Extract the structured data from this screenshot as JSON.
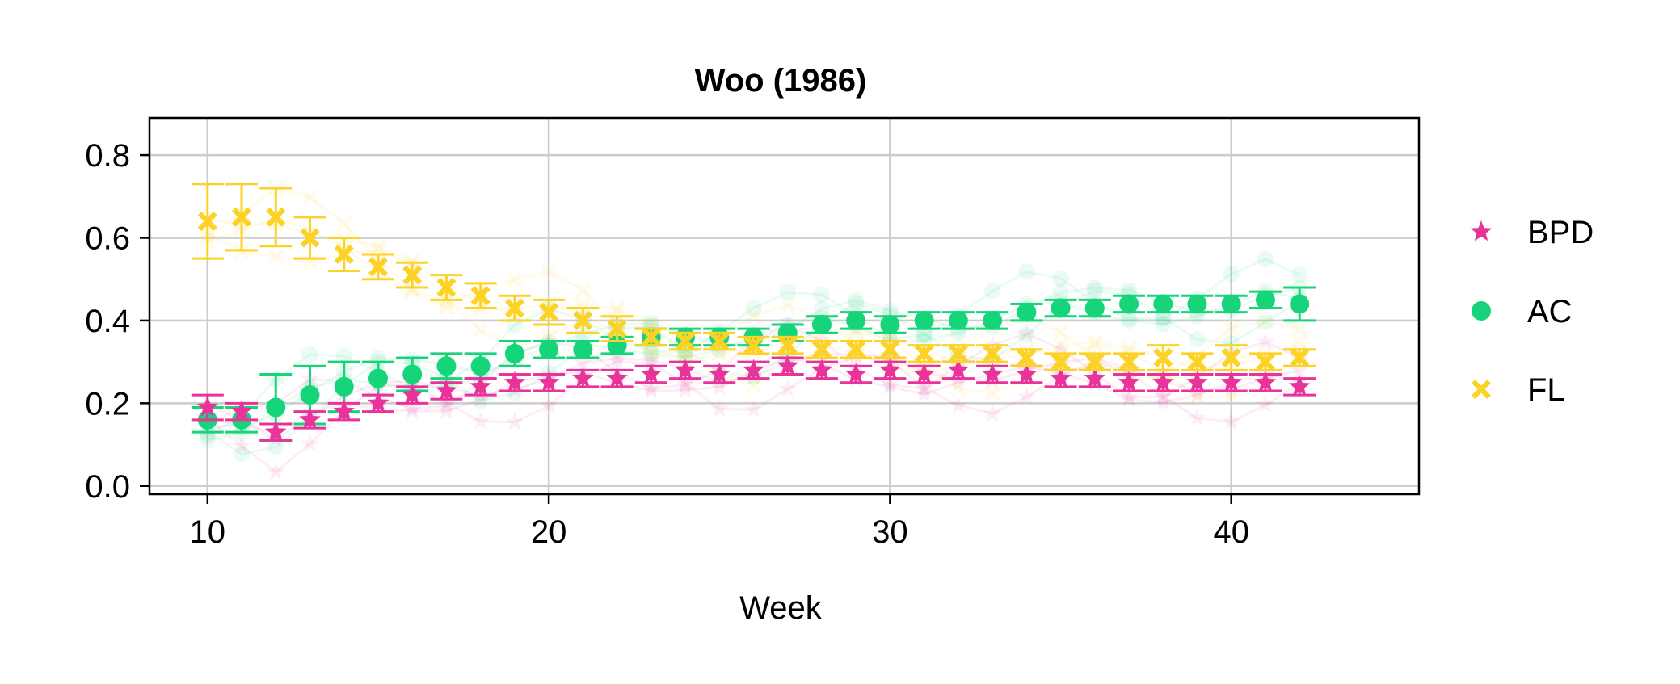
{
  "chart_data": {
    "type": "scatter",
    "title": "Woo (1986)",
    "xlabel": "Week",
    "ylabel": "",
    "xlim": [
      8.3,
      45.5
    ],
    "ylim": [
      -0.02,
      0.89
    ],
    "xticks": [
      10,
      20,
      30,
      40
    ],
    "yticks": [
      0.0,
      0.2,
      0.4,
      0.6,
      0.8
    ],
    "xtick_labels": [
      "10",
      "20",
      "30",
      "40"
    ],
    "ytick_labels": [
      "0.0",
      "0.2",
      "0.4",
      "0.6",
      "0.8"
    ],
    "grid": true,
    "legend_position": "right",
    "series": [
      {
        "name": "BPD",
        "marker": "star",
        "color": "#e8339a",
        "x": [
          10,
          11,
          12,
          13,
          14,
          15,
          16,
          17,
          18,
          19,
          20,
          21,
          22,
          23,
          24,
          25,
          26,
          27,
          28,
          29,
          30,
          31,
          32,
          33,
          34,
          35,
          36,
          37,
          38,
          39,
          40,
          41,
          42
        ],
        "y": [
          0.19,
          0.18,
          0.13,
          0.16,
          0.18,
          0.2,
          0.22,
          0.23,
          0.24,
          0.25,
          0.25,
          0.26,
          0.26,
          0.27,
          0.28,
          0.27,
          0.28,
          0.29,
          0.28,
          0.27,
          0.28,
          0.27,
          0.28,
          0.27,
          0.27,
          0.26,
          0.26,
          0.25,
          0.25,
          0.25,
          0.25,
          0.25,
          0.24
        ],
        "err": [
          0.03,
          0.02,
          0.02,
          0.02,
          0.02,
          0.02,
          0.02,
          0.02,
          0.02,
          0.02,
          0.02,
          0.02,
          0.02,
          0.02,
          0.02,
          0.02,
          0.02,
          0.02,
          0.02,
          0.02,
          0.02,
          0.02,
          0.02,
          0.02,
          0.02,
          0.02,
          0.02,
          0.02,
          0.02,
          0.02,
          0.02,
          0.02,
          0.02
        ]
      },
      {
        "name": "AC",
        "marker": "circle",
        "color": "#16d479",
        "x": [
          10,
          11,
          12,
          13,
          14,
          15,
          16,
          17,
          18,
          19,
          20,
          21,
          22,
          23,
          24,
          25,
          26,
          27,
          28,
          29,
          30,
          31,
          32,
          33,
          34,
          35,
          36,
          37,
          38,
          39,
          40,
          41,
          42
        ],
        "y": [
          0.16,
          0.16,
          0.19,
          0.22,
          0.24,
          0.26,
          0.27,
          0.29,
          0.29,
          0.32,
          0.33,
          0.33,
          0.34,
          0.36,
          0.36,
          0.36,
          0.36,
          0.37,
          0.39,
          0.4,
          0.39,
          0.4,
          0.4,
          0.4,
          0.42,
          0.43,
          0.43,
          0.44,
          0.44,
          0.44,
          0.44,
          0.45,
          0.44
        ],
        "err": [
          0.03,
          0.03,
          0.08,
          0.07,
          0.06,
          0.04,
          0.04,
          0.03,
          0.03,
          0.03,
          0.02,
          0.02,
          0.02,
          0.02,
          0.02,
          0.02,
          0.02,
          0.02,
          0.02,
          0.02,
          0.02,
          0.02,
          0.02,
          0.02,
          0.02,
          0.02,
          0.02,
          0.02,
          0.02,
          0.02,
          0.02,
          0.02,
          0.04
        ]
      },
      {
        "name": "FL",
        "marker": "x",
        "color": "#fdd227",
        "x": [
          10,
          11,
          12,
          13,
          14,
          15,
          16,
          17,
          18,
          19,
          20,
          21,
          22,
          23,
          24,
          25,
          26,
          27,
          28,
          29,
          30,
          31,
          32,
          33,
          34,
          35,
          36,
          37,
          38,
          39,
          40,
          41,
          42
        ],
        "y": [
          0.64,
          0.65,
          0.65,
          0.6,
          0.56,
          0.53,
          0.51,
          0.48,
          0.46,
          0.43,
          0.42,
          0.4,
          0.38,
          0.36,
          0.35,
          0.35,
          0.34,
          0.34,
          0.33,
          0.33,
          0.33,
          0.32,
          0.32,
          0.32,
          0.31,
          0.3,
          0.3,
          0.3,
          0.31,
          0.3,
          0.31,
          0.3,
          0.31
        ],
        "err": [
          0.09,
          0.08,
          0.07,
          0.05,
          0.04,
          0.03,
          0.03,
          0.03,
          0.03,
          0.03,
          0.03,
          0.03,
          0.03,
          0.02,
          0.02,
          0.02,
          0.02,
          0.02,
          0.02,
          0.02,
          0.02,
          0.02,
          0.02,
          0.02,
          0.02,
          0.02,
          0.02,
          0.02,
          0.03,
          0.02,
          0.03,
          0.02,
          0.02
        ]
      }
    ]
  }
}
